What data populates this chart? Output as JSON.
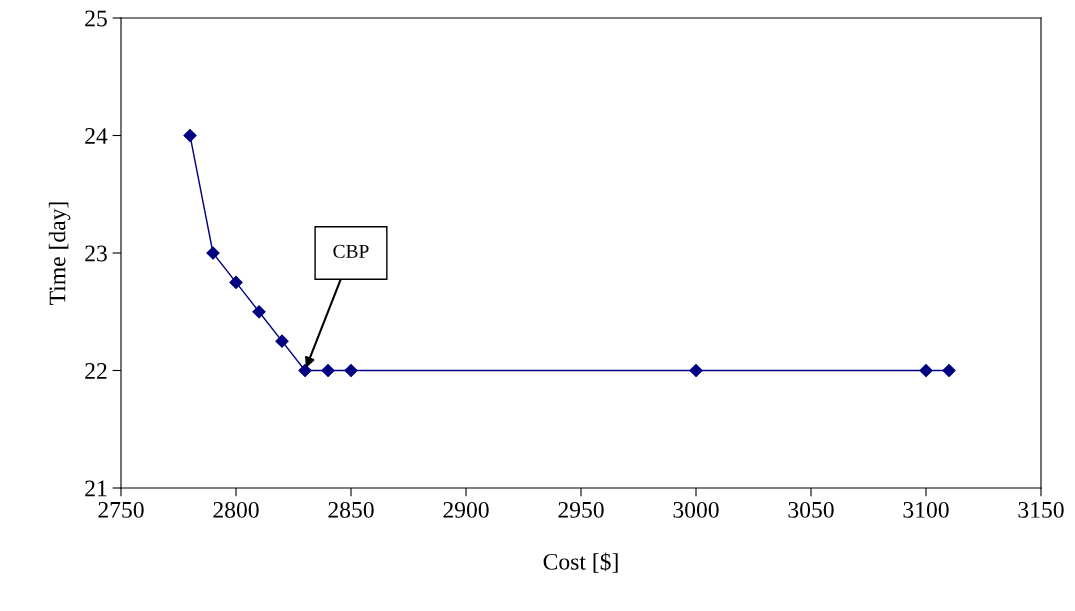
{
  "chart_data": {
    "type": "line",
    "xlabel": "Cost [$]",
    "ylabel": "Time [day]",
    "x": [
      2780,
      2790,
      2800,
      2810,
      2820,
      2830,
      2840,
      2850,
      3000,
      3100,
      3110
    ],
    "series": [
      {
        "color": "#000080",
        "values": [
          24,
          23,
          22.75,
          22.5,
          22.25,
          22,
          22,
          22,
          22,
          22,
          22
        ]
      }
    ],
    "xlim": [
      2750,
      3150
    ],
    "xticks": [
      2750,
      2800,
      2850,
      2900,
      2950,
      3000,
      3050,
      3100,
      3150
    ],
    "ylim": [
      21,
      25
    ],
    "yticks": [
      21,
      22,
      23,
      24,
      25
    ],
    "annotations": [
      {
        "text": "CBP",
        "x": 2830,
        "y": 22
      }
    ],
    "marker": "diamond",
    "line_style": "solid",
    "grid": false,
    "legend": false
  }
}
